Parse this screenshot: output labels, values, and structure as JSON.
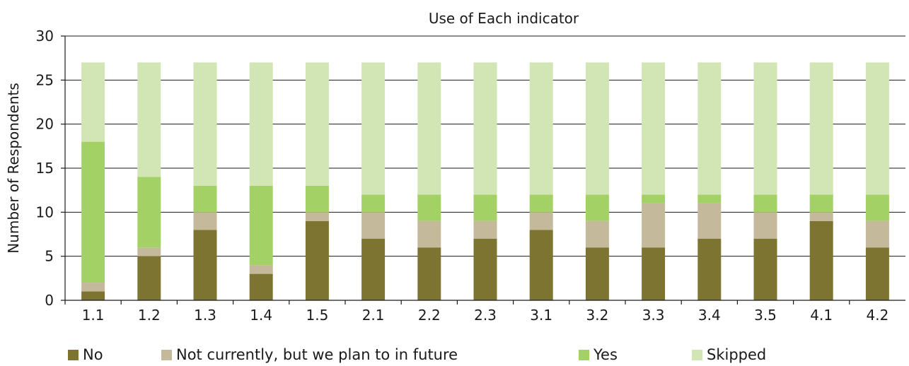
{
  "chart_data": {
    "type": "bar",
    "stacked": true,
    "title": "Use of Each indicator",
    "xlabel": "",
    "ylabel": "Number of Respondents",
    "ylim": [
      0,
      30
    ],
    "yticks": [
      0,
      5,
      10,
      15,
      20,
      25,
      30
    ],
    "grid": true,
    "legend_position": "bottom",
    "categories": [
      "1.1",
      "1.2",
      "1.3",
      "1.4",
      "1.5",
      "2.1",
      "2.2",
      "2.3",
      "3.1",
      "3.2",
      "3.3",
      "3.4",
      "3.5",
      "4.1",
      "4.2"
    ],
    "series": [
      {
        "name": "No",
        "color": "#7e7432",
        "values": [
          1,
          5,
          8,
          3,
          9,
          7,
          6,
          7,
          8,
          6,
          6,
          7,
          7,
          9,
          6
        ]
      },
      {
        "name": "Not currently, but we plan to in future",
        "color": "#c4b99a",
        "values": [
          1,
          1,
          2,
          1,
          1,
          3,
          3,
          2,
          2,
          3,
          5,
          4,
          3,
          1,
          3
        ]
      },
      {
        "name": "Yes",
        "color": "#a3d166",
        "values": [
          16,
          8,
          3,
          9,
          3,
          2,
          3,
          3,
          2,
          3,
          1,
          1,
          2,
          2,
          3
        ]
      },
      {
        "name": "Skipped",
        "color": "#d2e6b5",
        "values": [
          9,
          13,
          14,
          14,
          14,
          15,
          15,
          15,
          15,
          15,
          15,
          15,
          15,
          15,
          15
        ]
      }
    ]
  }
}
